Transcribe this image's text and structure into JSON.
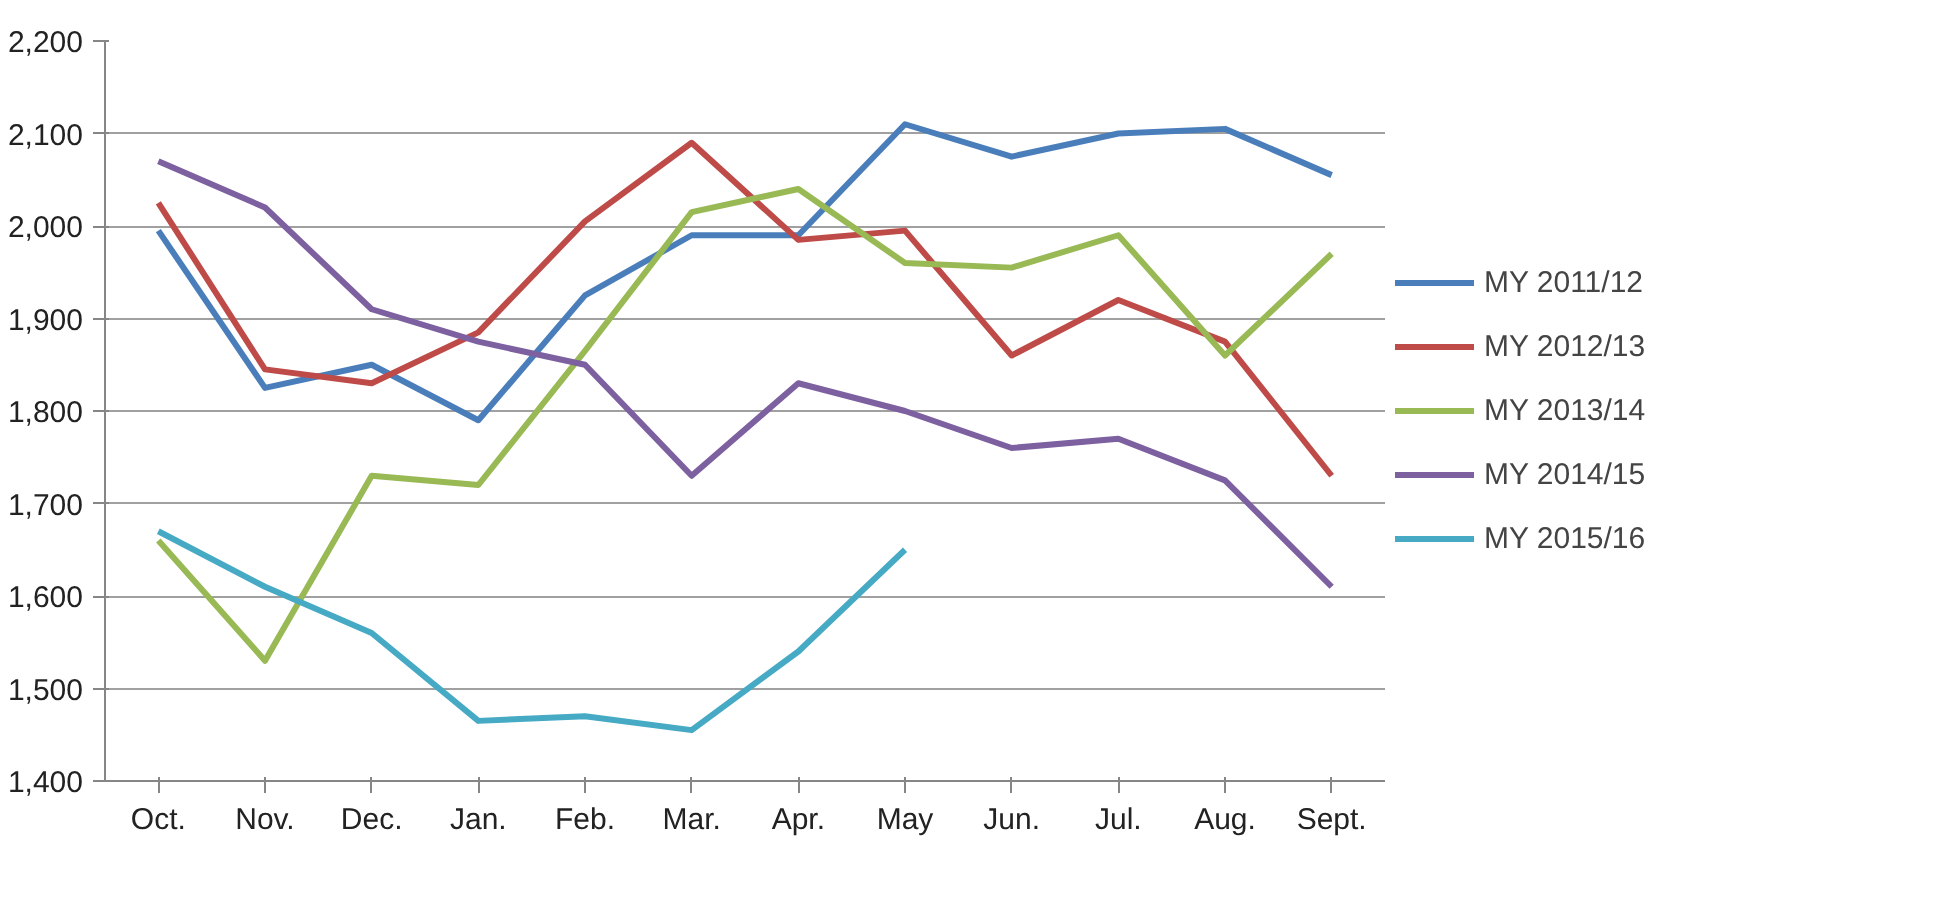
{
  "chart_data": {
    "type": "line",
    "categories": [
      "Oct.",
      "Nov.",
      "Dec.",
      "Jan.",
      "Feb.",
      "Mar.",
      "Apr.",
      "May",
      "Jun.",
      "Jul.",
      "Aug.",
      "Sept."
    ],
    "ylim": [
      1400,
      2200
    ],
    "yticks": [
      {
        "value": 1400,
        "label": "1,400"
      },
      {
        "value": 1500,
        "label": "1,500"
      },
      {
        "value": 1600,
        "label": "1,600"
      },
      {
        "value": 1700,
        "label": "1,700"
      },
      {
        "value": 1800,
        "label": "1,800"
      },
      {
        "value": 1900,
        "label": "1,900"
      },
      {
        "value": 2000,
        "label": "2,000"
      },
      {
        "value": 2100,
        "label": "2,100"
      },
      {
        "value": 2200,
        "label": "2,200"
      }
    ],
    "grid": "y",
    "legend": "right",
    "marker": "none",
    "line_style": "solid",
    "series": [
      {
        "name": "MY 2011/12",
        "color": "#4a7ebb",
        "values": [
          1995,
          1825,
          1850,
          1790,
          1925,
          1990,
          1990,
          2110,
          2075,
          2100,
          2105,
          2055
        ]
      },
      {
        "name": "MY 2012/13",
        "color": "#be4b48",
        "values": [
          2025,
          1845,
          1830,
          1885,
          2005,
          2090,
          1985,
          1995,
          1860,
          1920,
          1875,
          1730
        ]
      },
      {
        "name": "MY 2013/14",
        "color": "#98b954",
        "values": [
          1660,
          1530,
          1730,
          1720,
          1865,
          2015,
          2040,
          1960,
          1955,
          1990,
          1860,
          1970
        ]
      },
      {
        "name": "MY 2014/15",
        "color": "#7d60a0",
        "values": [
          2070,
          2020,
          1910,
          1875,
          1850,
          1730,
          1830,
          1800,
          1760,
          1770,
          1725,
          1610
        ]
      },
      {
        "name": "MY 2015/16",
        "color": "#46aac5",
        "values": [
          1670,
          1610,
          1560,
          1465,
          1470,
          1455,
          1540,
          1650,
          null,
          null,
          null,
          null
        ]
      }
    ]
  }
}
